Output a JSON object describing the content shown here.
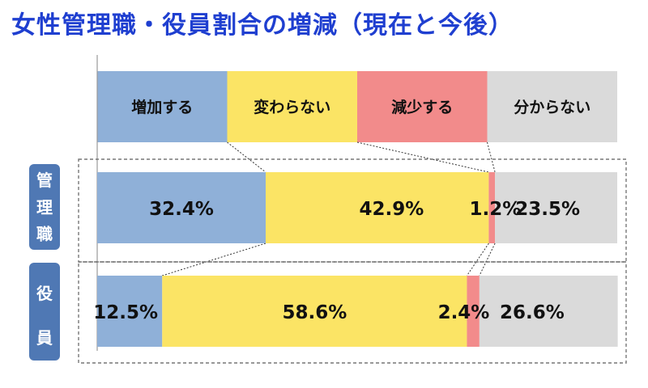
{
  "title": "女性管理職・役員割合の増減（現在と今後）",
  "colors": {
    "increase": "#8FB0D8",
    "same": "#FBE465",
    "decrease": "#F28B8B",
    "unknown": "#DADADA",
    "row_label_bg": "#4F78B4",
    "title": "#1F3FD0"
  },
  "chart_data": {
    "type": "bar",
    "stacked": true,
    "percent": true,
    "orientation": "horizontal",
    "legend_placement": "top",
    "categories": [
      "管理職",
      "役員"
    ],
    "series": [
      {
        "name": "増加する",
        "values": [
          32.4,
          12.5
        ],
        "labels": [
          "32.4%",
          "12.5%"
        ]
      },
      {
        "name": "変わらない",
        "values": [
          42.9,
          58.6
        ],
        "labels": [
          "42.9%",
          "58.6%"
        ]
      },
      {
        "name": "減少する",
        "values": [
          1.2,
          2.4
        ],
        "labels": [
          "1.2%",
          "2.4%"
        ]
      },
      {
        "name": "分からない",
        "values": [
          23.5,
          26.6
        ],
        "labels": [
          "23.5%",
          "26.6%"
        ]
      }
    ]
  }
}
